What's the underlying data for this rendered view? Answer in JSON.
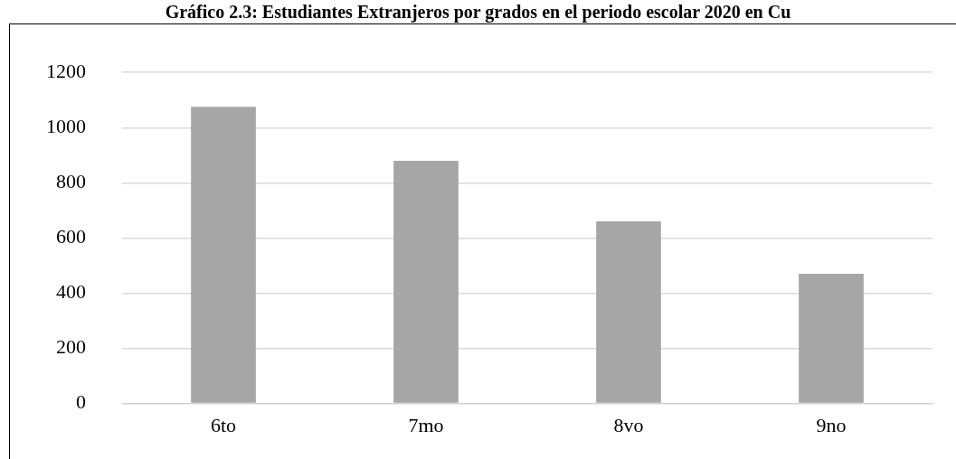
{
  "chart_data": {
    "type": "bar",
    "title": "Gráfico 2.3: Estudiantes Extranjeros por grados en el periodo escolar 2020 en Cu",
    "categories": [
      "6to",
      "7mo",
      "8vo",
      "9no"
    ],
    "values": [
      1075,
      880,
      660,
      470
    ],
    "color": "#a6a6a6",
    "ylim": [
      0,
      1200
    ],
    "yticks": [
      0,
      200,
      400,
      600,
      800,
      1000,
      1200
    ],
    "grid": "y"
  }
}
